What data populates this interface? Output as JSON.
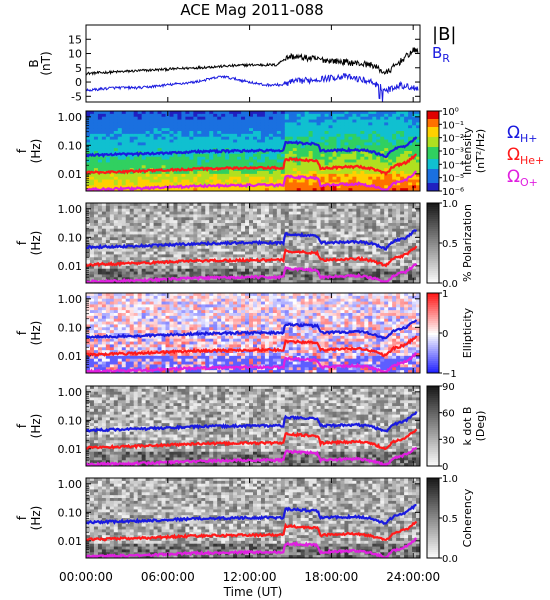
{
  "title": "ACE Mag 2011-088",
  "colors": {
    "B_total": "#000000",
    "B_R": "#1a1adf",
    "H_plus": "#1a1adf",
    "He_plus": "#ff1a1a",
    "O_plus": "#e020e0"
  },
  "chart_data": [
    {
      "type": "line",
      "panel": "field",
      "ylabel": "B",
      "yunit": "(nT)",
      "ylim": [
        -7,
        20
      ],
      "yticks": [
        "-5",
        "0",
        "5",
        "10",
        "15"
      ],
      "x_range_hours": [
        0,
        24.5
      ],
      "legend": [
        {
          "name": "|B|",
          "color_key": "B_total"
        },
        {
          "name": "B",
          "sub": "R",
          "color_key": "B_R"
        }
      ],
      "series": [
        {
          "name": "|B|",
          "x": [
            0,
            2,
            4,
            6,
            8,
            10,
            12,
            14,
            14.5,
            15,
            17,
            19,
            21,
            22,
            23,
            24
          ],
          "values": [
            3,
            3.5,
            4,
            4.5,
            5,
            5.5,
            6,
            6,
            8,
            9,
            8,
            7,
            6,
            3,
            7,
            11
          ]
        },
        {
          "name": "B_R",
          "x": [
            0,
            2,
            4,
            6,
            8,
            10,
            11,
            13,
            14.5,
            15,
            17,
            19,
            21,
            22,
            23,
            24
          ],
          "values": [
            -3,
            -2,
            -2,
            -1,
            0,
            2,
            1,
            -1,
            -1,
            0,
            1,
            2,
            0,
            -3,
            -1,
            -2
          ]
        }
      ]
    },
    {
      "type": "heatmap",
      "panel": "intensity",
      "ylabel": "f",
      "yunit": "(Hz)",
      "ylim": [
        0.002,
        1.5
      ],
      "yscale": "log",
      "yticks": [
        "1.00",
        "0.10",
        "0.01"
      ],
      "colorbar": {
        "label": "Intensity",
        "unit": "(nT²/Hz)",
        "ticks": [
          "10⁰",
          "10⁻¹",
          "10⁻²",
          "10⁻³",
          "10⁻⁴",
          "10⁻⁵",
          "10⁻⁶"
        ],
        "colormap": "rainbow"
      },
      "gyrofrequency_legend": [
        {
          "name": "Ω",
          "sub": "H+",
          "color_key": "H_plus"
        },
        {
          "name": "Ω",
          "sub": "He+",
          "color_key": "He_plus"
        },
        {
          "name": "Ω",
          "sub": "O+",
          "color_key": "O_plus"
        }
      ]
    },
    {
      "type": "heatmap",
      "panel": "polarization",
      "ylabel": "f",
      "yunit": "(Hz)",
      "yscale": "log",
      "yticks": [
        "1.00",
        "0.10",
        "0.01"
      ],
      "colorbar": {
        "label": "% Polarization",
        "ticks": [
          "1.0",
          "0.5",
          "0.0"
        ],
        "colormap": "gray"
      }
    },
    {
      "type": "heatmap",
      "panel": "ellipticity",
      "ylabel": "f",
      "yunit": "(Hz)",
      "yscale": "log",
      "yticks": [
        "1.00",
        "0.10",
        "0.01"
      ],
      "colorbar": {
        "label": "Ellipticity",
        "ticks": [
          "1",
          "0",
          "−1"
        ],
        "colormap": "bwr"
      }
    },
    {
      "type": "heatmap",
      "panel": "k_dot_B",
      "ylabel": "f",
      "yunit": "(Hz)",
      "yscale": "log",
      "yticks": [
        "1.00",
        "0.10",
        "0.01"
      ],
      "colorbar": {
        "label": "k dot B",
        "unit": "(Deg)",
        "ticks": [
          "90",
          "60",
          "30",
          "0"
        ],
        "colormap": "gray"
      }
    },
    {
      "type": "heatmap",
      "panel": "coherency",
      "ylabel": "f",
      "yunit": "(Hz)",
      "yscale": "log",
      "yticks": [
        "1.00",
        "0.10",
        "0.01"
      ],
      "colorbar": {
        "label": "Coherency",
        "ticks": [
          "1.0",
          "0.5",
          "0.0"
        ],
        "colormap": "gray"
      }
    },
    {
      "type": "line",
      "panel": "gyrofrequencies",
      "x_range_hours": [
        0,
        24.5
      ],
      "xlabel": "Time (UT)",
      "xticks": [
        "00:00:00",
        "06:00:00",
        "12:00:00",
        "18:00:00",
        "24:00:00"
      ],
      "series": [
        {
          "name": "Ω H+",
          "x": [
            0,
            4,
            8,
            12,
            14.5,
            14.6,
            17,
            17.2,
            20,
            21,
            22,
            22.5,
            23.5,
            24.3
          ],
          "values": [
            0.045,
            0.05,
            0.06,
            0.065,
            0.065,
            0.13,
            0.11,
            0.065,
            0.07,
            0.06,
            0.04,
            0.07,
            0.1,
            0.2
          ]
        },
        {
          "name": "Ω He+",
          "x": [
            0,
            4,
            8,
            12,
            14.5,
            14.6,
            17,
            17.2,
            20,
            21,
            22,
            22.5,
            23.5,
            24.3
          ],
          "values": [
            0.011,
            0.0125,
            0.015,
            0.016,
            0.016,
            0.033,
            0.028,
            0.016,
            0.018,
            0.015,
            0.01,
            0.018,
            0.025,
            0.05
          ]
        },
        {
          "name": "Ω O+",
          "x": [
            0,
            4,
            8,
            12,
            14.5,
            14.6,
            17,
            17.2,
            20,
            21,
            22,
            22.5,
            23.5,
            24.3
          ],
          "values": [
            0.0028,
            0.0031,
            0.0037,
            0.004,
            0.004,
            0.0082,
            0.007,
            0.004,
            0.0045,
            0.0038,
            0.0026,
            0.0045,
            0.0063,
            0.0125
          ]
        }
      ]
    }
  ]
}
